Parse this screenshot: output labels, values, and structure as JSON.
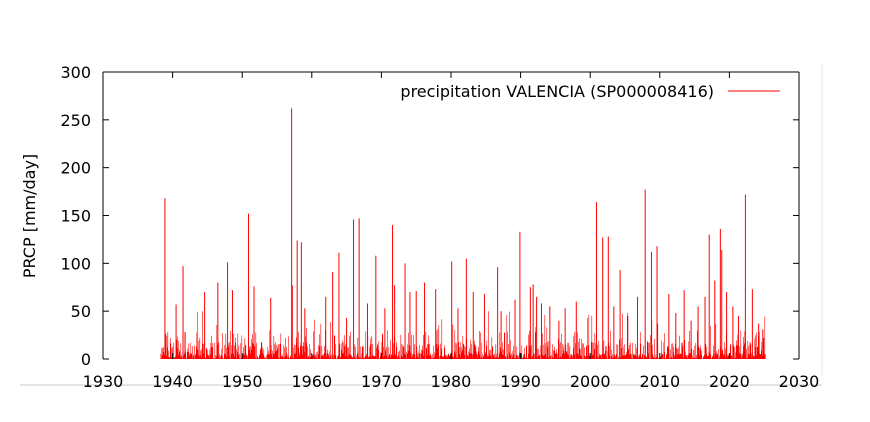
{
  "chart_data": {
    "type": "bar",
    "title": "",
    "xlabel": "",
    "ylabel": "PRCP [mm/day]",
    "xlim": [
      1930,
      2030
    ],
    "ylim": [
      0,
      300
    ],
    "xticks": [
      1930,
      1940,
      1950,
      1960,
      1970,
      1980,
      1990,
      2000,
      2010,
      2020,
      2030
    ],
    "yticks": [
      0,
      50,
      100,
      150,
      200,
      250,
      300
    ],
    "grid": false,
    "legend_position": "top-right",
    "series": [
      {
        "name": "precipitation VALENCIA (SP000008416)",
        "color": "#ff0000",
        "x_start": 1938.3,
        "x_end": 2025.2,
        "peaks": [
          [
            1938.9,
            168
          ],
          [
            1940.5,
            57
          ],
          [
            1941.5,
            97
          ],
          [
            1944.6,
            70
          ],
          [
            1946.5,
            80
          ],
          [
            1947.9,
            101
          ],
          [
            1948.6,
            72
          ],
          [
            1950.9,
            152
          ],
          [
            1951.7,
            76
          ],
          [
            1954.1,
            64
          ],
          [
            1957.1,
            262
          ],
          [
            1957.2,
            77
          ],
          [
            1957.9,
            124
          ],
          [
            1958.5,
            122
          ],
          [
            1959.0,
            53
          ],
          [
            1962.0,
            65
          ],
          [
            1963.0,
            91
          ],
          [
            1963.9,
            111
          ],
          [
            1965.0,
            43
          ],
          [
            1966.0,
            146
          ],
          [
            1966.8,
            147
          ],
          [
            1968.0,
            58
          ],
          [
            1969.2,
            108
          ],
          [
            1970.5,
            53
          ],
          [
            1971.6,
            140
          ],
          [
            1971.9,
            77
          ],
          [
            1973.4,
            100
          ],
          [
            1974.1,
            70
          ],
          [
            1975.0,
            71
          ],
          [
            1976.2,
            80
          ],
          [
            1977.8,
            73
          ],
          [
            1980.1,
            102
          ],
          [
            1981.0,
            53
          ],
          [
            1982.2,
            105
          ],
          [
            1983.2,
            70
          ],
          [
            1984.8,
            68
          ],
          [
            1986.7,
            96
          ],
          [
            1987.2,
            50
          ],
          [
            1989.2,
            62
          ],
          [
            1989.9,
            133
          ],
          [
            1991.4,
            75
          ],
          [
            1991.8,
            78
          ],
          [
            1992.3,
            65
          ],
          [
            1993.0,
            58
          ],
          [
            1994.2,
            55
          ],
          [
            1995.5,
            40
          ],
          [
            1996.4,
            53
          ],
          [
            1998.0,
            60
          ],
          [
            2000.9,
            164
          ],
          [
            2001.8,
            127
          ],
          [
            2002.6,
            128
          ],
          [
            2003.4,
            55
          ],
          [
            2004.3,
            93
          ],
          [
            2005.4,
            45
          ],
          [
            2006.8,
            65
          ],
          [
            2007.9,
            177
          ],
          [
            2008.8,
            112
          ],
          [
            2009.6,
            118
          ],
          [
            2011.3,
            68
          ],
          [
            2012.3,
            48
          ],
          [
            2013.5,
            72
          ],
          [
            2014.5,
            40
          ],
          [
            2015.5,
            55
          ],
          [
            2016.5,
            65
          ],
          [
            2017.1,
            130
          ],
          [
            2017.9,
            82
          ],
          [
            2018.7,
            136
          ],
          [
            2018.9,
            114
          ],
          [
            2019.6,
            70
          ],
          [
            2020.5,
            55
          ],
          [
            2021.3,
            45
          ],
          [
            2022.3,
            172
          ],
          [
            2023.3,
            73
          ],
          [
            2024.2,
            37
          ],
          [
            2024.8,
            31
          ]
        ]
      }
    ]
  }
}
